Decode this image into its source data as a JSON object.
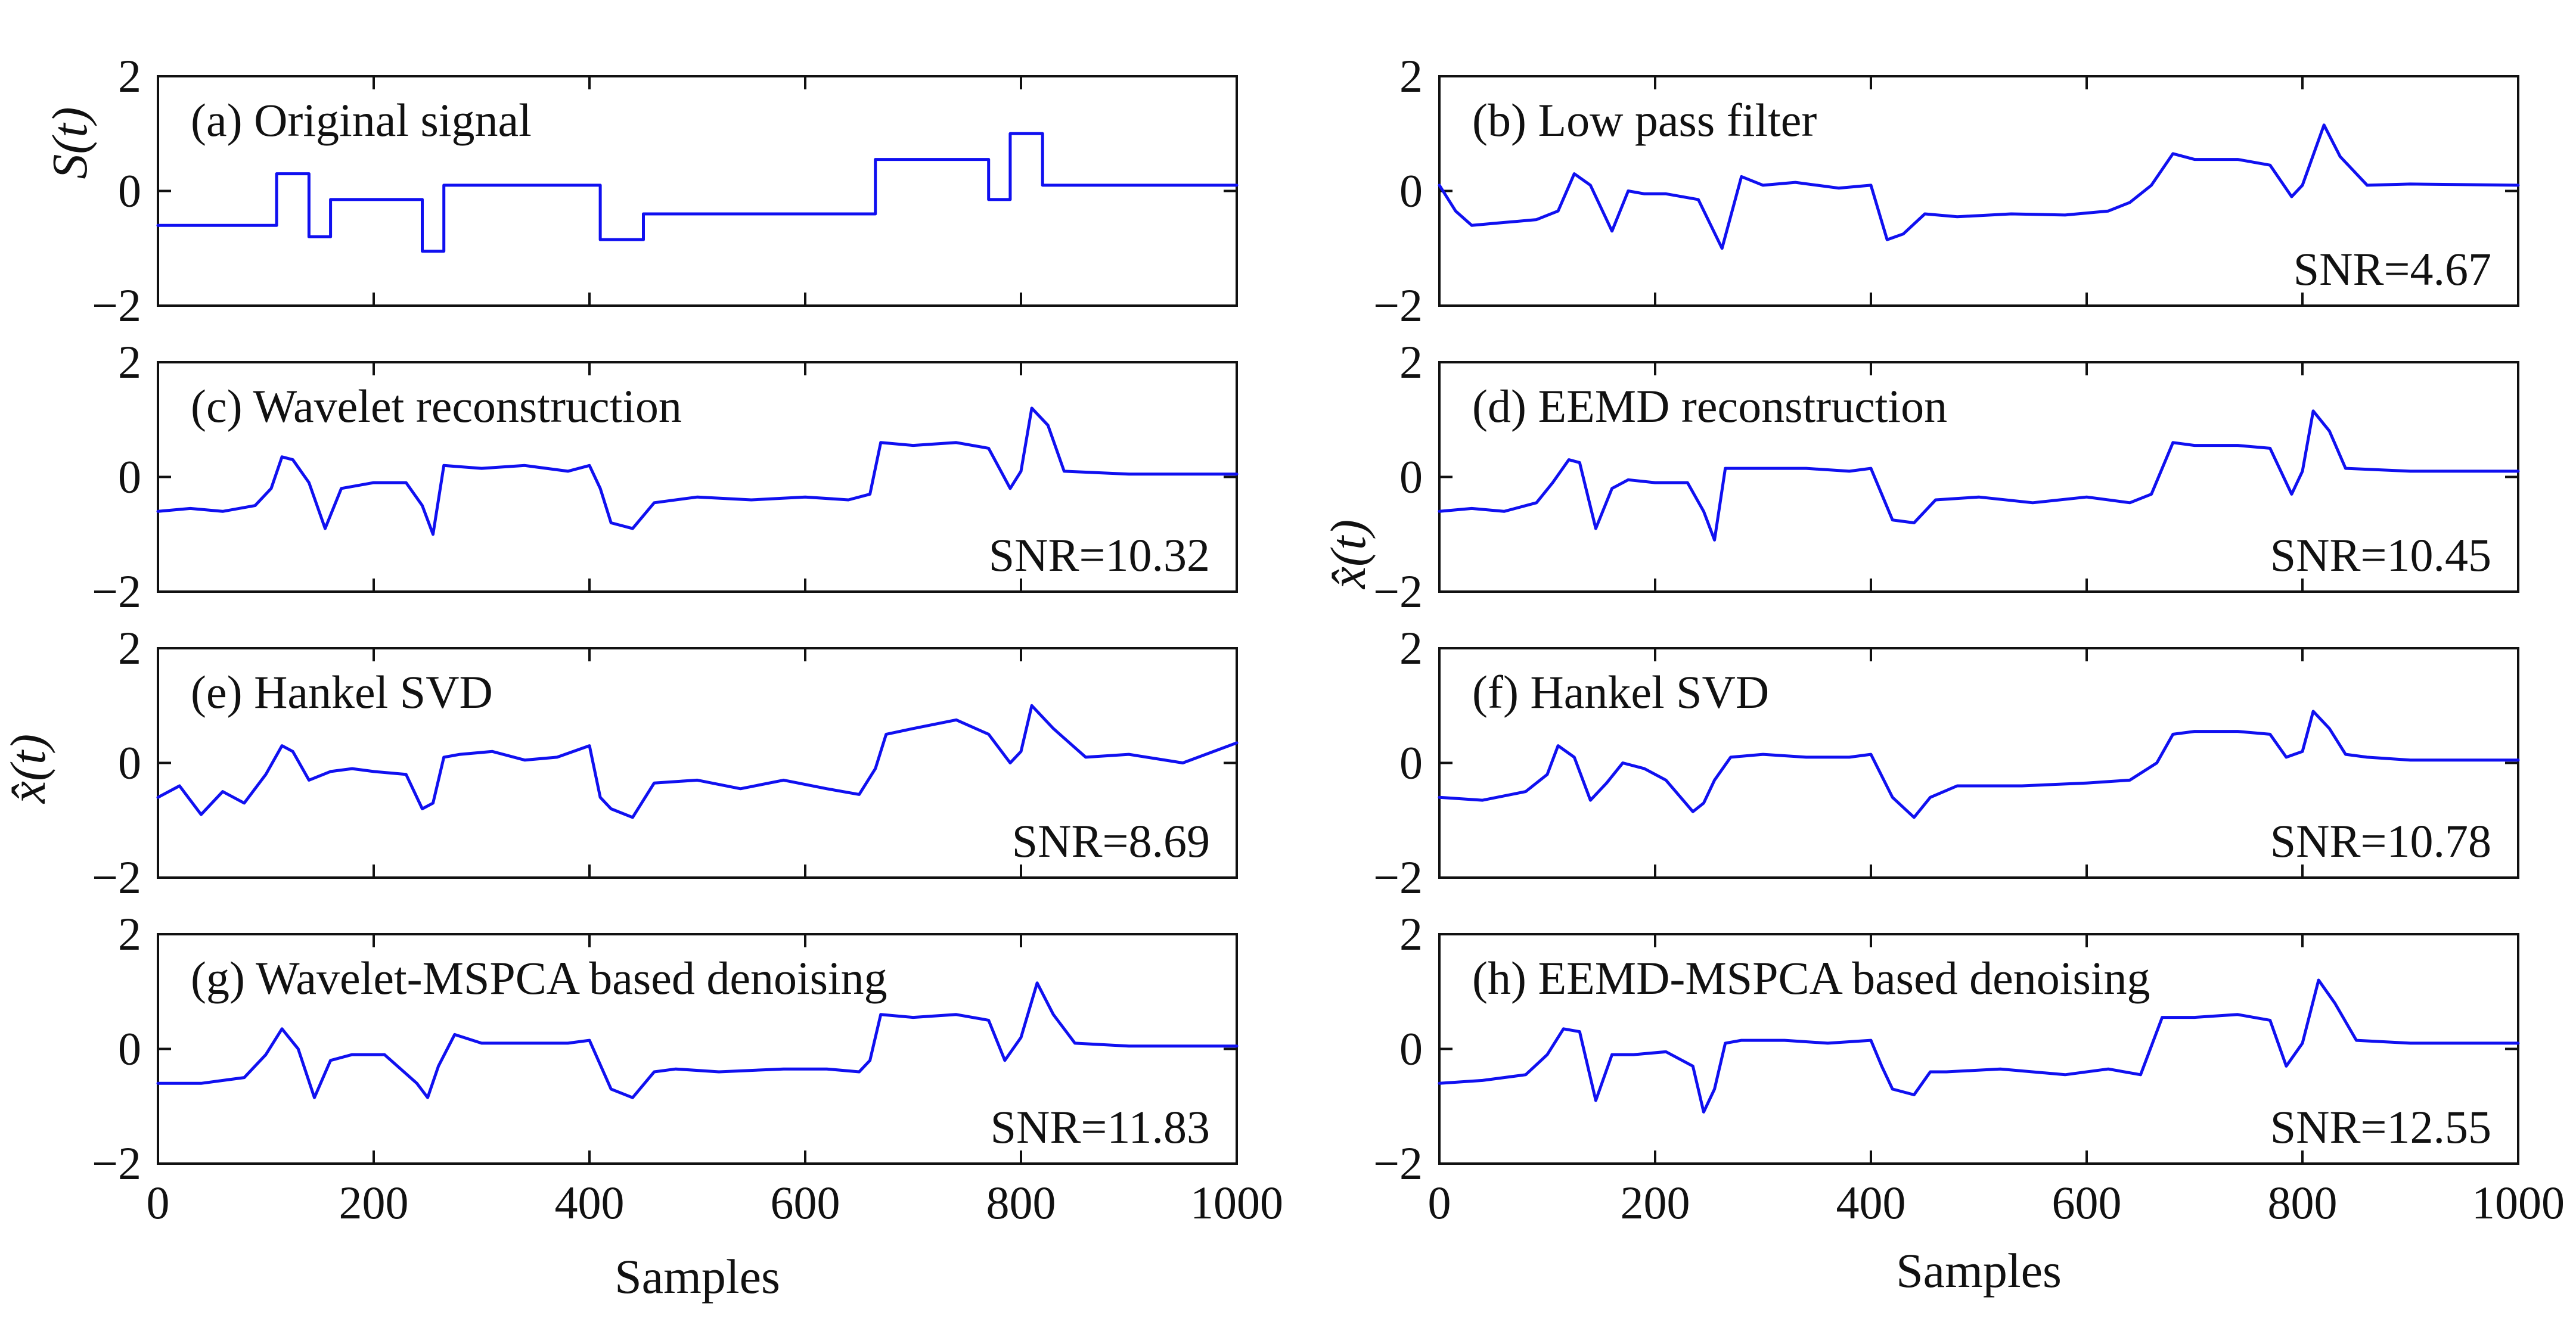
{
  "chart_data": {
    "type": "line",
    "x_axis": {
      "label": "Samples",
      "ticks": [
        "0",
        "200",
        "400",
        "600",
        "800",
        "1000"
      ],
      "range": [
        0,
        1000
      ]
    },
    "y_axis": {
      "ticks": [
        "−2",
        "0",
        "2"
      ],
      "range": [
        -2,
        2
      ]
    },
    "y_labels": {
      "original": "S(t)",
      "reconstructed": "x̂(t)"
    },
    "line_color": "#1010f0",
    "panels": [
      {
        "id": "a",
        "title": "(a) Original signal",
        "snr": null,
        "x": [
          0,
          110,
          110,
          140,
          140,
          160,
          160,
          245,
          245,
          265,
          265,
          410,
          410,
          450,
          450,
          665,
          665,
          770,
          770,
          790,
          790,
          820,
          820,
          1000
        ],
        "y": [
          -0.6,
          -0.6,
          0.3,
          0.3,
          -0.8,
          -0.8,
          -0.15,
          -0.15,
          -1.05,
          -1.05,
          0.1,
          0.1,
          -0.85,
          -0.85,
          -0.4,
          -0.4,
          0.55,
          0.55,
          -0.15,
          -0.15,
          1.0,
          1.0,
          0.1,
          0.1
        ]
      },
      {
        "id": "b",
        "title": "(b) Low pass filter",
        "snr": "SNR=4.67",
        "x": [
          0,
          15,
          30,
          60,
          90,
          110,
          125,
          140,
          160,
          175,
          190,
          210,
          240,
          262,
          280,
          300,
          330,
          370,
          400,
          415,
          430,
          450,
          480,
          530,
          580,
          620,
          640,
          660,
          680,
          700,
          740,
          770,
          790,
          800,
          820,
          835,
          860,
          900,
          1000
        ],
        "y": [
          0.1,
          -0.35,
          -0.6,
          -0.55,
          -0.5,
          -0.35,
          0.3,
          0.1,
          -0.7,
          0.0,
          -0.05,
          -0.05,
          -0.15,
          -1.0,
          0.25,
          0.1,
          0.15,
          0.05,
          0.1,
          -0.85,
          -0.75,
          -0.4,
          -0.45,
          -0.4,
          -0.42,
          -0.35,
          -0.2,
          0.1,
          0.65,
          0.55,
          0.55,
          0.45,
          -0.1,
          0.1,
          1.15,
          0.6,
          0.1,
          0.12,
          0.1
        ]
      },
      {
        "id": "c",
        "title": "(c) Wavelet reconstruction",
        "snr": "SNR=10.32",
        "x": [
          0,
          30,
          60,
          90,
          105,
          115,
          125,
          140,
          155,
          170,
          200,
          230,
          245,
          255,
          265,
          300,
          340,
          380,
          400,
          410,
          420,
          440,
          460,
          500,
          550,
          600,
          640,
          660,
          670,
          700,
          740,
          770,
          790,
          800,
          810,
          825,
          840,
          900,
          1000
        ],
        "y": [
          -0.6,
          -0.55,
          -0.6,
          -0.5,
          -0.2,
          0.35,
          0.3,
          -0.1,
          -0.9,
          -0.2,
          -0.1,
          -0.1,
          -0.5,
          -1.0,
          0.2,
          0.15,
          0.2,
          0.1,
          0.2,
          -0.2,
          -0.8,
          -0.9,
          -0.45,
          -0.35,
          -0.4,
          -0.35,
          -0.4,
          -0.3,
          0.6,
          0.55,
          0.6,
          0.5,
          -0.2,
          0.1,
          1.2,
          0.9,
          0.1,
          0.05,
          0.05
        ]
      },
      {
        "id": "d",
        "title": "(d) EEMD reconstruction",
        "snr": "SNR=10.45",
        "x": [
          0,
          30,
          60,
          90,
          105,
          120,
          130,
          145,
          160,
          175,
          200,
          230,
          245,
          255,
          265,
          300,
          340,
          380,
          400,
          410,
          420,
          440,
          460,
          500,
          550,
          600,
          640,
          660,
          680,
          700,
          740,
          770,
          790,
          800,
          810,
          825,
          840,
          900,
          1000
        ],
        "y": [
          -0.6,
          -0.55,
          -0.6,
          -0.45,
          -0.1,
          0.3,
          0.25,
          -0.9,
          -0.2,
          -0.05,
          -0.1,
          -0.1,
          -0.6,
          -1.1,
          0.15,
          0.15,
          0.15,
          0.1,
          0.15,
          -0.3,
          -0.75,
          -0.8,
          -0.4,
          -0.35,
          -0.45,
          -0.35,
          -0.45,
          -0.3,
          0.6,
          0.55,
          0.55,
          0.5,
          -0.3,
          0.1,
          1.15,
          0.8,
          0.15,
          0.1,
          0.1
        ]
      },
      {
        "id": "e",
        "title": "(e) Hankel SVD",
        "snr": "SNR=8.69",
        "x": [
          0,
          20,
          40,
          60,
          80,
          100,
          115,
          125,
          140,
          160,
          180,
          200,
          230,
          245,
          255,
          265,
          280,
          310,
          340,
          370,
          400,
          410,
          420,
          440,
          460,
          500,
          540,
          580,
          620,
          650,
          665,
          675,
          700,
          740,
          770,
          790,
          800,
          810,
          830,
          860,
          900,
          950,
          1000
        ],
        "y": [
          -0.6,
          -0.4,
          -0.9,
          -0.5,
          -0.7,
          -0.2,
          0.3,
          0.2,
          -0.3,
          -0.15,
          -0.1,
          -0.15,
          -0.2,
          -0.8,
          -0.7,
          0.1,
          0.15,
          0.2,
          0.05,
          0.1,
          0.3,
          -0.6,
          -0.8,
          -0.95,
          -0.35,
          -0.3,
          -0.45,
          -0.3,
          -0.45,
          -0.55,
          -0.1,
          0.5,
          0.6,
          0.75,
          0.5,
          0.0,
          0.2,
          1.0,
          0.6,
          0.1,
          0.15,
          0.0,
          0.35
        ]
      },
      {
        "id": "f",
        "title": "(f) Hankel SVD",
        "snr": "SNR=10.78",
        "x": [
          0,
          40,
          80,
          100,
          110,
          125,
          140,
          155,
          170,
          190,
          210,
          235,
          245,
          255,
          270,
          300,
          340,
          380,
          400,
          420,
          440,
          455,
          480,
          540,
          600,
          640,
          665,
          680,
          700,
          740,
          770,
          785,
          800,
          810,
          825,
          840,
          860,
          900,
          1000
        ],
        "y": [
          -0.6,
          -0.65,
          -0.5,
          -0.2,
          0.3,
          0.1,
          -0.65,
          -0.35,
          0.0,
          -0.1,
          -0.3,
          -0.85,
          -0.7,
          -0.3,
          0.1,
          0.15,
          0.1,
          0.1,
          0.15,
          -0.6,
          -0.95,
          -0.6,
          -0.4,
          -0.4,
          -0.35,
          -0.3,
          0.0,
          0.5,
          0.55,
          0.55,
          0.5,
          0.1,
          0.2,
          0.9,
          0.6,
          0.15,
          0.1,
          0.05,
          0.05
        ]
      },
      {
        "id": "g",
        "title": "(g) Wavelet-MSPCA based denoising",
        "snr": "SNR=11.83",
        "x": [
          0,
          40,
          80,
          100,
          115,
          130,
          145,
          160,
          180,
          210,
          240,
          250,
          260,
          275,
          300,
          340,
          380,
          400,
          420,
          440,
          460,
          480,
          520,
          580,
          620,
          650,
          660,
          670,
          700,
          740,
          770,
          785,
          800,
          815,
          830,
          850,
          900,
          1000
        ],
        "y": [
          -0.6,
          -0.6,
          -0.5,
          -0.1,
          0.35,
          0.0,
          -0.85,
          -0.2,
          -0.1,
          -0.1,
          -0.6,
          -0.85,
          -0.3,
          0.25,
          0.1,
          0.1,
          0.1,
          0.15,
          -0.7,
          -0.85,
          -0.4,
          -0.35,
          -0.4,
          -0.35,
          -0.35,
          -0.4,
          -0.2,
          0.6,
          0.55,
          0.6,
          0.5,
          -0.2,
          0.2,
          1.15,
          0.6,
          0.1,
          0.05,
          0.05
        ]
      },
      {
        "id": "h",
        "title": "(h) EEMD-MSPCA based denoising",
        "snr": "SNR=12.55",
        "x": [
          0,
          40,
          80,
          100,
          115,
          130,
          145,
          160,
          180,
          210,
          235,
          245,
          255,
          265,
          280,
          320,
          360,
          400,
          410,
          420,
          440,
          455,
          470,
          520,
          580,
          620,
          650,
          670,
          700,
          740,
          770,
          785,
          800,
          815,
          830,
          850,
          900,
          1000
        ],
        "y": [
          -0.6,
          -0.55,
          -0.45,
          -0.1,
          0.35,
          0.3,
          -0.9,
          -0.1,
          -0.1,
          -0.05,
          -0.3,
          -1.1,
          -0.7,
          0.1,
          0.15,
          0.15,
          0.1,
          0.15,
          -0.3,
          -0.7,
          -0.8,
          -0.4,
          -0.4,
          -0.35,
          -0.45,
          -0.35,
          -0.45,
          0.55,
          0.55,
          0.6,
          0.5,
          -0.3,
          0.1,
          1.2,
          0.8,
          0.15,
          0.1,
          0.1
        ]
      }
    ]
  }
}
